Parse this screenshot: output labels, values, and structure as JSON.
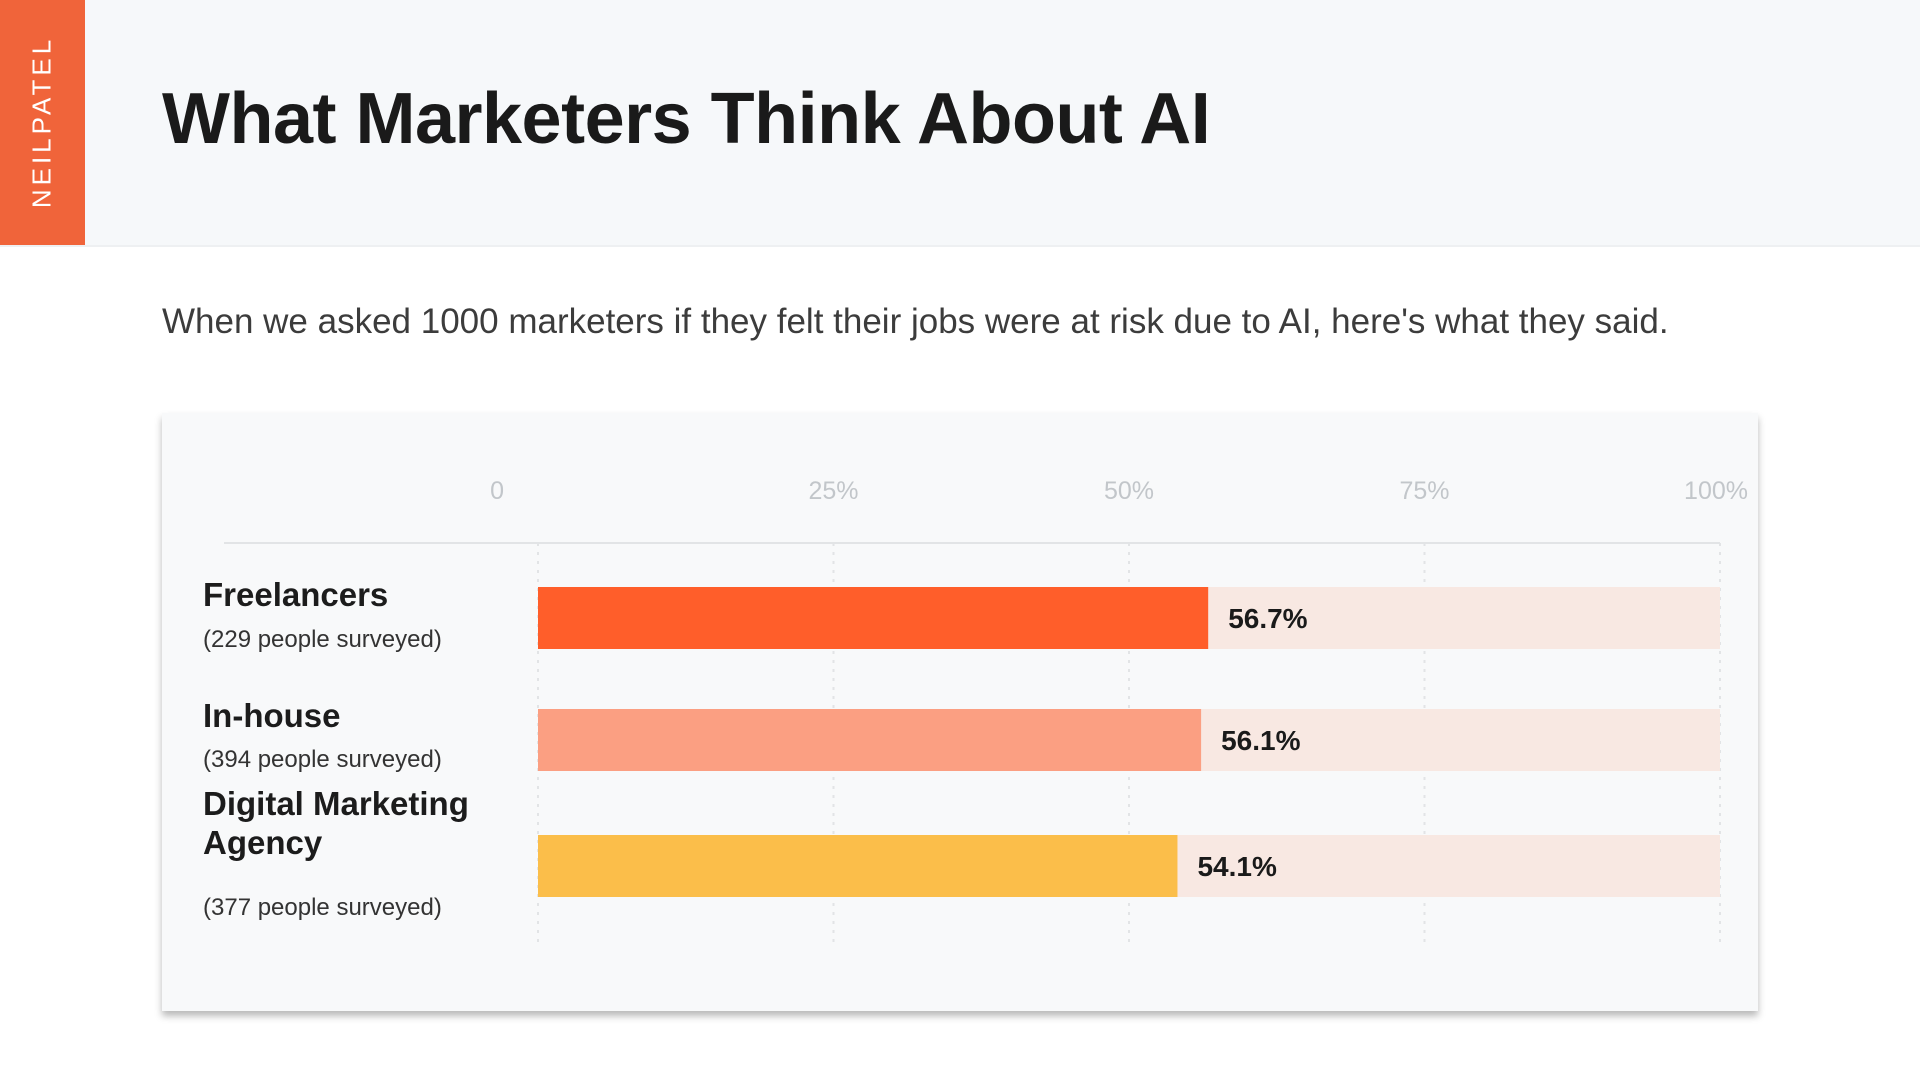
{
  "brand": {
    "name": "NEILPATEL"
  },
  "header": {
    "title": "What Marketers Think About AI"
  },
  "subtitle": "When we asked 1000 marketers if they felt their jobs were at risk due to AI, here's what they said.",
  "colors": {
    "brand": "#f0643a",
    "track": "#f8e8e2",
    "grid": "#e2e4e6",
    "tick_text": "#c2c6ca"
  },
  "chart_data": {
    "type": "bar",
    "orientation": "horizontal",
    "xlim": [
      0,
      100
    ],
    "x_ticks": [
      {
        "value": 0,
        "label": "0"
      },
      {
        "value": 25,
        "label": "25%"
      },
      {
        "value": 50,
        "label": "50%"
      },
      {
        "value": 75,
        "label": "75%"
      },
      {
        "value": 100,
        "label": "100%"
      }
    ],
    "grid": true,
    "categories": [
      {
        "name": [
          "Freelancers"
        ],
        "subtitle": "(229 people surveyed)",
        "value": 56.7,
        "value_label": "56.7%",
        "color": "#ff5e2a"
      },
      {
        "name": [
          "In-house"
        ],
        "subtitle": "(394 people surveyed)",
        "value": 56.1,
        "value_label": "56.1%",
        "color": "#fb9f82"
      },
      {
        "name": [
          "Digital Marketing",
          "Agency"
        ],
        "subtitle": "(377 people surveyed)",
        "value": 54.1,
        "value_label": "54.1%",
        "color": "#fbbe4a"
      }
    ]
  }
}
